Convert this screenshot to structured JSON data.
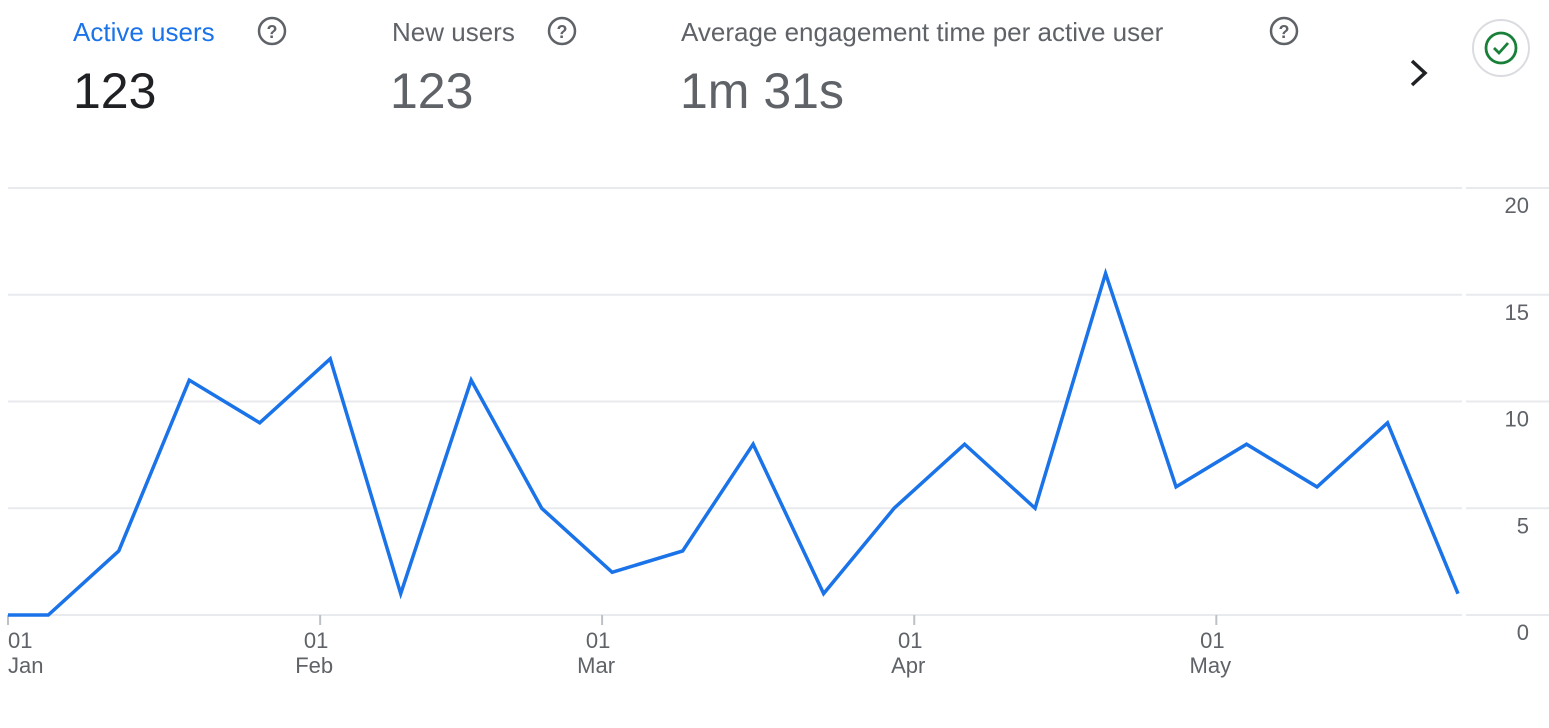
{
  "metrics": [
    {
      "label": "Active users",
      "value": "123"
    },
    {
      "label": "New users",
      "value": "123"
    },
    {
      "label": "Average engagement time per active user",
      "value": "1m 31s"
    }
  ],
  "chart_data": {
    "type": "line",
    "x": [
      0,
      4,
      11,
      18,
      25,
      32,
      39,
      46,
      53,
      60,
      67,
      74,
      81,
      88,
      95,
      102,
      109,
      116,
      123,
      130,
      137,
      144
    ],
    "values": [
      0,
      0,
      3,
      11,
      9,
      12,
      1,
      11,
      5,
      2,
      3,
      8,
      1,
      5,
      8,
      5,
      16,
      6,
      8,
      6,
      9,
      1
    ],
    "color": "#1a73e8",
    "xlim": [
      0,
      144
    ],
    "xticks": [
      {
        "value": 0,
        "label": [
          "01",
          "Jan"
        ]
      },
      {
        "value": 31,
        "label": [
          "01",
          "Feb"
        ]
      },
      {
        "value": 59,
        "label": [
          "01",
          "Mar"
        ]
      },
      {
        "value": 90,
        "label": [
          "01",
          "Apr"
        ]
      },
      {
        "value": 120,
        "label": [
          "01",
          "May"
        ]
      }
    ],
    "ylim": [
      0,
      20
    ],
    "yticks": [
      0,
      5,
      10,
      15,
      20
    ],
    "grid": true
  }
}
